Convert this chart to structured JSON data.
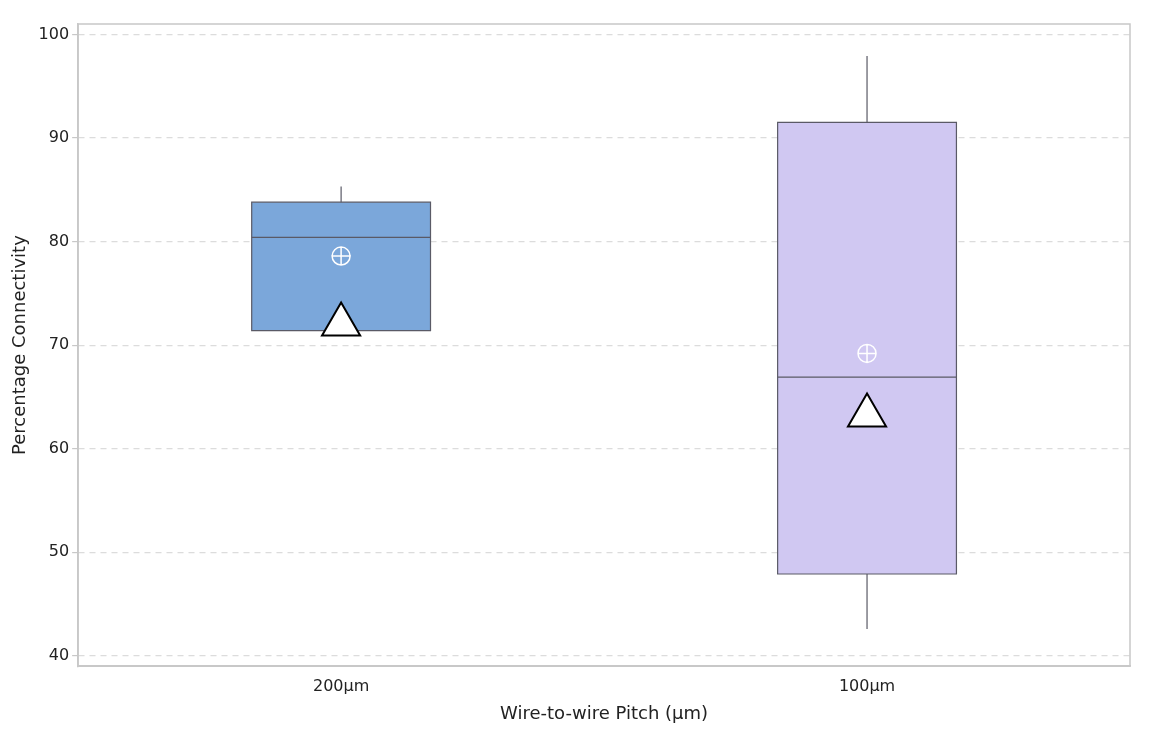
{
  "chart_data": {
    "type": "box",
    "xlabel": "Wire-to-wire Pitch (µm)",
    "ylabel": "Percentage Connectivity",
    "categories": [
      "200µm",
      "100µm"
    ],
    "ylim": [
      39,
      101
    ],
    "yticks": [
      40,
      50,
      60,
      70,
      80,
      90,
      100
    ],
    "grid": "y",
    "legend": false,
    "series": [
      {
        "type": "box",
        "colors": [
          "#7ba7da",
          "#d0c8f2"
        ],
        "boxes": [
          {
            "low": 71.4,
            "q1": 71.4,
            "median": 80.4,
            "q3": 83.8,
            "high": 85.3,
            "mean": 78.6
          },
          {
            "low": 42.6,
            "q1": 47.9,
            "median": 66.9,
            "q3": 91.5,
            "high": 97.9,
            "mean": 69.2
          }
        ]
      },
      {
        "type": "scatter",
        "marker": "triangle",
        "color": "#ffffff",
        "x": [
          "200µm",
          "100µm"
        ],
        "values": [
          72.0,
          63.2
        ]
      }
    ]
  }
}
